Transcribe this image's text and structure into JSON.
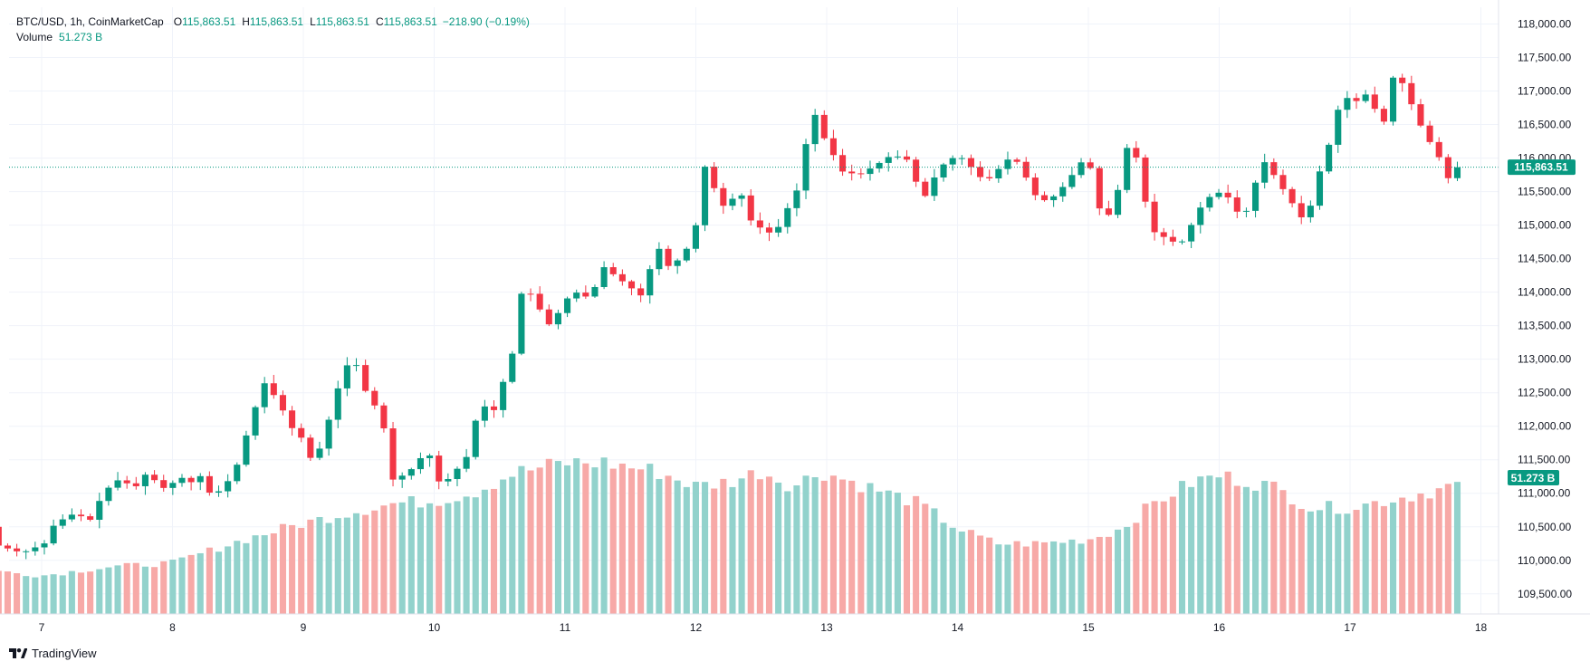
{
  "header": {
    "symbol": "BTC/USD, 1h, CoinMarketCap",
    "open_label": "O",
    "open": "115,863.51",
    "high_label": "H",
    "high": "115,863.51",
    "low_label": "L",
    "low": "115,863.51",
    "close_label": "C",
    "close": "115,863.51",
    "change": "−218.90 (−0.19%)",
    "volume_label": "Volume",
    "volume": "51.273 B"
  },
  "footer": {
    "brand": "TradingView",
    "logo_icon": "tradingview-logo-icon"
  },
  "colors": {
    "up": "#089981",
    "down": "#f23645",
    "vol_up": "#92d2cc",
    "vol_down": "#f7a9a7",
    "grid": "#f0f3fa",
    "axis_text": "#131722",
    "badge": "#089981"
  },
  "chart_data": {
    "type": "candlestick",
    "interval": "1h",
    "x_ticks": [
      "7",
      "8",
      "9",
      "10",
      "11",
      "12",
      "13",
      "14",
      "15",
      "16",
      "17",
      "18"
    ],
    "y_ticks": [
      "118,000.00",
      "117,500.00",
      "117,000.00",
      "116,500.00",
      "116,000.00",
      "115,500.00",
      "115,000.00",
      "114,500.00",
      "114,000.00",
      "113,500.00",
      "113,000.00",
      "112,500.00",
      "112,000.00",
      "111,500.00",
      "111,000.00",
      "110,500.00",
      "110,000.00",
      "109,500.00"
    ],
    "y_range": [
      109200,
      118250
    ],
    "last_price": 115863.51,
    "last_price_label": "115,863.51",
    "last_volume_label": "51.273 B",
    "grid": true,
    "price_points": [
      [
        6.67,
        110500,
        110220
      ],
      [
        6.85,
        110220,
        110110
      ],
      [
        7.02,
        110150,
        110250
      ],
      [
        7.1,
        110250,
        110550
      ],
      [
        7.25,
        110600,
        110700
      ],
      [
        7.37,
        110700,
        110600
      ],
      [
        7.47,
        110650,
        111000
      ],
      [
        7.57,
        111050,
        111200
      ],
      [
        7.73,
        111250,
        111100
      ],
      [
        7.8,
        111150,
        111300
      ],
      [
        7.95,
        111300,
        111050
      ],
      [
        8.05,
        111100,
        111250
      ],
      [
        8.16,
        111300,
        111150
      ],
      [
        8.2,
        111200,
        111300
      ],
      [
        8.3,
        111250,
        110950
      ],
      [
        8.4,
        110900,
        111100
      ],
      [
        8.5,
        111100,
        111450
      ],
      [
        8.6,
        111500,
        112100
      ],
      [
        8.7,
        112200,
        112650
      ],
      [
        8.8,
        112600,
        112400
      ],
      [
        8.92,
        112300,
        111950
      ],
      [
        9.0,
        112100,
        111800
      ],
      [
        9.08,
        111900,
        111400
      ],
      [
        9.18,
        111550,
        112000
      ],
      [
        9.3,
        112100,
        112800
      ],
      [
        9.38,
        112950,
        113050
      ],
      [
        9.48,
        113000,
        112500
      ],
      [
        9.6,
        112700,
        112150
      ],
      [
        9.68,
        111800,
        111200
      ],
      [
        9.8,
        111100,
        111300
      ],
      [
        9.95,
        111400,
        111650
      ],
      [
        10.05,
        111500,
        111100
      ],
      [
        10.15,
        111000,
        111300
      ],
      [
        10.25,
        111300,
        111550
      ],
      [
        10.35,
        111600,
        112350
      ],
      [
        10.45,
        112450,
        112200
      ],
      [
        10.6,
        112300,
        113100
      ],
      [
        10.62,
        113250,
        113800
      ],
      [
        10.7,
        114000,
        114100
      ],
      [
        10.82,
        114000,
        113700
      ],
      [
        10.9,
        113650,
        113450
      ],
      [
        10.98,
        113500,
        113850
      ],
      [
        11.08,
        113900,
        114000
      ],
      [
        11.2,
        114000,
        113900
      ],
      [
        11.28,
        113950,
        114400
      ],
      [
        11.38,
        114400,
        114250
      ],
      [
        11.48,
        114250,
        114100
      ],
      [
        11.58,
        114000,
        113950
      ],
      [
        11.65,
        113900,
        114350
      ],
      [
        11.72,
        114550,
        114650
      ],
      [
        11.8,
        114650,
        114350
      ],
      [
        11.92,
        114400,
        114600
      ],
      [
        12.0,
        114650,
        115000
      ],
      [
        12.08,
        115150,
        116000
      ],
      [
        12.16,
        116050,
        115400
      ],
      [
        12.25,
        115300,
        115200
      ],
      [
        12.32,
        115400,
        115650
      ],
      [
        12.4,
        115600,
        115100
      ],
      [
        12.5,
        115100,
        114950
      ],
      [
        12.6,
        114950,
        114850
      ],
      [
        12.7,
        114900,
        115250
      ],
      [
        12.78,
        115250,
        115550
      ],
      [
        12.84,
        115600,
        116200
      ],
      [
        12.9,
        116300,
        116700
      ],
      [
        12.98,
        116700,
        116300
      ],
      [
        13.05,
        116250,
        116050
      ],
      [
        13.12,
        116100,
        115800
      ],
      [
        13.25,
        115800,
        115750
      ],
      [
        13.38,
        115750,
        115900
      ],
      [
        13.5,
        115950,
        116050
      ],
      [
        13.58,
        116050,
        116000
      ],
      [
        13.65,
        116000,
        115950
      ],
      [
        13.72,
        115900,
        115300
      ],
      [
        13.78,
        115350,
        115550
      ],
      [
        13.86,
        115600,
        115850
      ],
      [
        13.95,
        115900,
        116000
      ],
      [
        14.05,
        116000,
        116000
      ],
      [
        14.15,
        115950,
        115750
      ],
      [
        14.22,
        115700,
        115650
      ],
      [
        14.32,
        115700,
        115850
      ],
      [
        14.42,
        115900,
        116050
      ],
      [
        14.5,
        116000,
        115800
      ],
      [
        14.62,
        115750,
        115350
      ],
      [
        14.72,
        115350,
        115400
      ],
      [
        14.82,
        115450,
        115600
      ],
      [
        14.95,
        115650,
        115950
      ],
      [
        15.0,
        116000,
        116000
      ],
      [
        15.05,
        116000,
        115500
      ],
      [
        15.12,
        115400,
        115000
      ],
      [
        15.2,
        115050,
        115350
      ],
      [
        15.28,
        115400,
        115900
      ],
      [
        15.32,
        115950,
        116550
      ],
      [
        15.4,
        116400,
        115600
      ],
      [
        15.5,
        115550,
        114900
      ],
      [
        15.6,
        114900,
        114800
      ],
      [
        15.7,
        114800,
        114700
      ],
      [
        15.8,
        114750,
        115050
      ],
      [
        15.88,
        115050,
        115350
      ],
      [
        15.98,
        115350,
        115500
      ],
      [
        16.08,
        115500,
        115400
      ],
      [
        16.18,
        115400,
        115050
      ],
      [
        16.28,
        115100,
        115650
      ],
      [
        16.35,
        115700,
        115950
      ],
      [
        16.45,
        115900,
        115650
      ],
      [
        16.55,
        115600,
        115350
      ],
      [
        16.65,
        115350,
        115050
      ],
      [
        16.72,
        115100,
        115400
      ],
      [
        16.78,
        115450,
        115900
      ],
      [
        16.82,
        115950,
        116050
      ],
      [
        16.9,
        116050,
        116700
      ],
      [
        16.98,
        116750,
        116900
      ],
      [
        17.05,
        116950,
        116850
      ],
      [
        17.12,
        116800,
        116950
      ],
      [
        17.2,
        116900,
        116700
      ],
      [
        17.25,
        116650,
        116400
      ],
      [
        17.3,
        116450,
        117200
      ],
      [
        17.38,
        117250,
        117200
      ],
      [
        17.45,
        117150,
        116900
      ],
      [
        17.52,
        116800,
        116550
      ],
      [
        17.58,
        116500,
        116350
      ],
      [
        17.62,
        116300,
        116200
      ],
      [
        17.7,
        116200,
        115950
      ],
      [
        17.75,
        115900,
        115700
      ],
      [
        17.82,
        115700,
        115863.51
      ]
    ],
    "volume_profile": [
      [
        6.67,
        0.2
      ],
      [
        7.0,
        0.18
      ],
      [
        7.5,
        0.22
      ],
      [
        8.0,
        0.24
      ],
      [
        8.5,
        0.34
      ],
      [
        8.9,
        0.41
      ],
      [
        9.3,
        0.47
      ],
      [
        9.7,
        0.52
      ],
      [
        10.0,
        0.53
      ],
      [
        10.3,
        0.57
      ],
      [
        10.6,
        0.66
      ],
      [
        11.0,
        0.71
      ],
      [
        11.3,
        0.71
      ],
      [
        11.7,
        0.67
      ],
      [
        12.0,
        0.6
      ],
      [
        12.25,
        0.62
      ],
      [
        12.5,
        0.67
      ],
      [
        12.75,
        0.6
      ],
      [
        12.95,
        0.67
      ],
      [
        13.3,
        0.6
      ],
      [
        13.7,
        0.52
      ],
      [
        14.0,
        0.4
      ],
      [
        14.3,
        0.33
      ],
      [
        14.6,
        0.33
      ],
      [
        15.0,
        0.35
      ],
      [
        15.25,
        0.4
      ],
      [
        15.5,
        0.52
      ],
      [
        15.8,
        0.62
      ],
      [
        16.0,
        0.65
      ],
      [
        16.4,
        0.6
      ],
      [
        16.7,
        0.5
      ],
      [
        17.0,
        0.5
      ],
      [
        17.5,
        0.56
      ],
      [
        17.85,
        0.61
      ]
    ]
  }
}
